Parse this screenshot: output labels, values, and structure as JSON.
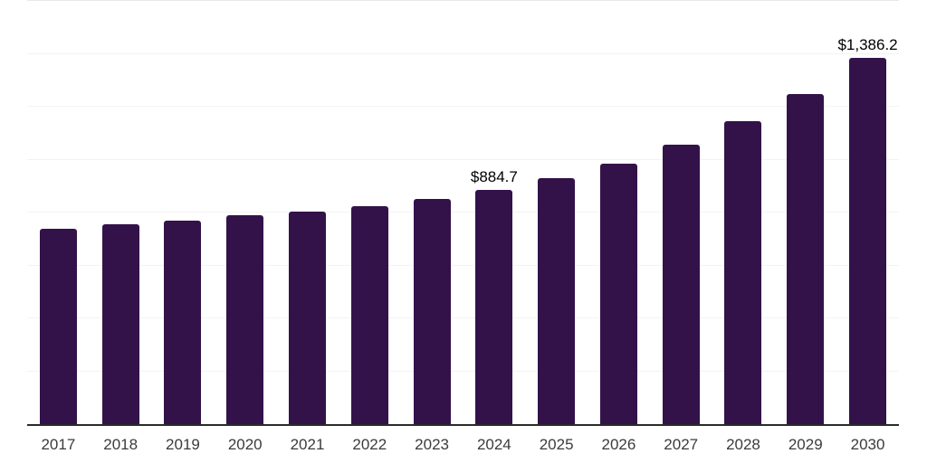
{
  "chart_data": {
    "type": "bar",
    "title": "",
    "xlabel": "",
    "ylabel": "",
    "categories": [
      "2017",
      "2018",
      "2019",
      "2020",
      "2021",
      "2022",
      "2023",
      "2024",
      "2025",
      "2026",
      "2027",
      "2028",
      "2029",
      "2030"
    ],
    "values": [
      740,
      757,
      770,
      790,
      802,
      825,
      850,
      884.7,
      929,
      984,
      1055,
      1146,
      1249,
      1386.2
    ],
    "annotations": [
      {
        "category": "2024",
        "label": "$884.7"
      },
      {
        "category": "2030",
        "label": "$1,386.2"
      }
    ],
    "ylim": [
      0,
      1600
    ],
    "grid_step": 200,
    "grid": "horizontal",
    "legend": "none",
    "bar_color": "#33124a"
  },
  "colors": {
    "background": "#ffffff",
    "bar": "#33124a",
    "axis_line": "#2a2a2a",
    "gridline": "#f3f3f3",
    "gridline_top": "#e8e8e8",
    "tick_label": "#3b3b3b",
    "data_label": "#000000"
  }
}
